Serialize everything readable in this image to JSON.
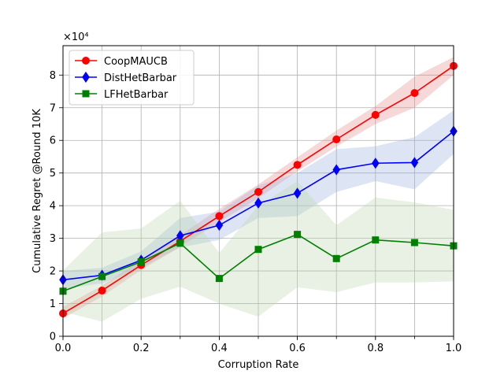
{
  "chart_data": {
    "type": "line",
    "title": "",
    "xlabel": "Corruption Rate",
    "ylabel": "Cumulative Regret @Round 10K",
    "y_multiplier": "×10⁴",
    "xlim": [
      0.0,
      1.0
    ],
    "ylim": [
      0,
      8.9
    ],
    "grid": true,
    "legend_position": "upper-left",
    "xticks": [
      0.0,
      0.2,
      0.4,
      0.6,
      0.8,
      1.0
    ],
    "xtick_labels": [
      "0.0",
      "0.2",
      "0.4",
      "0.6",
      "0.8",
      "1.0"
    ],
    "yticks": [
      0,
      1,
      2,
      3,
      4,
      5,
      6,
      7,
      8
    ],
    "ytick_labels": [
      "0",
      "1",
      "2",
      "3",
      "4",
      "5",
      "6",
      "7",
      "8"
    ],
    "x": [
      0.0,
      0.1,
      0.2,
      0.3,
      0.4,
      0.5,
      0.6,
      0.7,
      0.8,
      0.9,
      1.0
    ],
    "series": [
      {
        "name": "CoopMAUCB",
        "color": "#ff0000",
        "fill": "#e88f8f",
        "marker": "circle",
        "values": [
          0.7,
          1.4,
          2.18,
          2.91,
          3.68,
          4.42,
          5.25,
          6.03,
          6.78,
          7.45,
          8.28
        ],
        "lower": [
          0.55,
          1.22,
          2.03,
          2.74,
          3.5,
          4.23,
          5.05,
          5.81,
          6.5,
          7.0,
          8.0
        ],
        "upper": [
          0.9,
          1.55,
          2.35,
          3.1,
          3.9,
          4.65,
          5.48,
          6.3,
          7.05,
          7.95,
          8.55
        ]
      },
      {
        "name": "DistHetBarbar",
        "color": "#0000ff",
        "fill": "#9fb4e0",
        "marker": "diamond",
        "values": [
          1.73,
          1.87,
          2.33,
          3.08,
          3.4,
          4.08,
          4.38,
          5.1,
          5.3,
          5.32,
          6.28
        ],
        "lower": [
          1.45,
          1.62,
          2.1,
          2.72,
          2.95,
          3.62,
          3.68,
          4.42,
          4.75,
          4.5,
          5.58
        ],
        "upper": [
          2.0,
          2.1,
          2.6,
          3.62,
          3.82,
          4.62,
          5.0,
          5.73,
          5.82,
          6.1,
          6.92
        ]
      },
      {
        "name": "LFHetBarbar",
        "color": "#008000",
        "fill": "#bdd7ae",
        "marker": "square",
        "values": [
          1.38,
          1.83,
          2.28,
          2.85,
          1.77,
          2.66,
          3.12,
          2.38,
          2.95,
          2.87,
          2.77
        ],
        "lower": [
          0.75,
          0.45,
          1.15,
          1.52,
          1.0,
          0.6,
          1.5,
          1.35,
          1.65,
          1.65,
          1.68
        ],
        "upper": [
          2.02,
          3.18,
          3.3,
          4.15,
          2.55,
          4.0,
          4.75,
          3.4,
          4.25,
          4.1,
          3.87
        ]
      }
    ]
  }
}
